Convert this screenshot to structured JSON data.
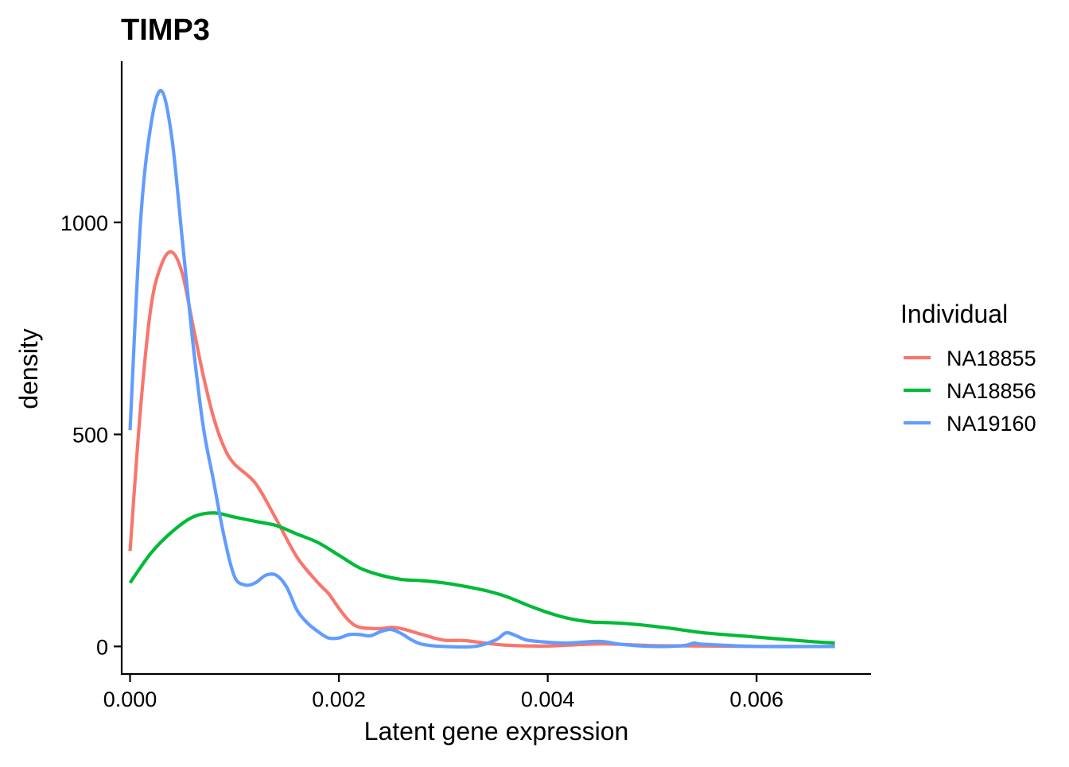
{
  "chart_data": {
    "type": "line",
    "title": "TIMP3",
    "xlabel": "Latent gene expression",
    "ylabel": "density",
    "xlim": [
      -8e-05,
      0.00708
    ],
    "ylim": [
      -65,
      1380
    ],
    "xticks": [
      0.0,
      0.002,
      0.004,
      0.006
    ],
    "xtick_labels": [
      "0.000",
      "0.002",
      "0.004",
      "0.006"
    ],
    "yticks": [
      0,
      500,
      1000
    ],
    "ytick_labels": [
      "0",
      "500",
      "1000"
    ],
    "grid": false,
    "legend": {
      "title": "Individual",
      "position": "right"
    },
    "series": [
      {
        "name": "NA18855",
        "color": "#F8766D",
        "points": [
          [
            0.0,
            225
          ],
          [
            0.0001,
            560
          ],
          [
            0.0002,
            800
          ],
          [
            0.0003,
            900
          ],
          [
            0.0004,
            930
          ],
          [
            0.0005,
            880
          ],
          [
            0.0006,
            760
          ],
          [
            0.0007,
            640
          ],
          [
            0.0008,
            540
          ],
          [
            0.0009,
            470
          ],
          [
            0.001,
            430
          ],
          [
            0.0012,
            385
          ],
          [
            0.0014,
            300
          ],
          [
            0.0016,
            210
          ],
          [
            0.0018,
            150
          ],
          [
            0.0019,
            125
          ],
          [
            0.002,
            90
          ],
          [
            0.0021,
            60
          ],
          [
            0.0022,
            45
          ],
          [
            0.0024,
            42
          ],
          [
            0.0025,
            45
          ],
          [
            0.0026,
            42
          ],
          [
            0.0028,
            28
          ],
          [
            0.003,
            15
          ],
          [
            0.0032,
            14
          ],
          [
            0.0034,
            8
          ],
          [
            0.0036,
            3
          ],
          [
            0.004,
            1
          ],
          [
            0.0045,
            6
          ],
          [
            0.005,
            2
          ],
          [
            0.0055,
            1
          ],
          [
            0.006,
            0
          ],
          [
            0.00675,
            0
          ]
        ]
      },
      {
        "name": "NA18856",
        "color": "#00BA38",
        "points": [
          [
            0.0,
            150
          ],
          [
            0.0002,
            220
          ],
          [
            0.0004,
            270
          ],
          [
            0.0006,
            305
          ],
          [
            0.0008,
            315
          ],
          [
            0.001,
            305
          ],
          [
            0.0012,
            295
          ],
          [
            0.0014,
            285
          ],
          [
            0.0016,
            265
          ],
          [
            0.0018,
            245
          ],
          [
            0.002,
            215
          ],
          [
            0.0022,
            185
          ],
          [
            0.0024,
            168
          ],
          [
            0.0026,
            158
          ],
          [
            0.0028,
            155
          ],
          [
            0.003,
            150
          ],
          [
            0.0032,
            142
          ],
          [
            0.0034,
            132
          ],
          [
            0.0036,
            118
          ],
          [
            0.0038,
            98
          ],
          [
            0.004,
            80
          ],
          [
            0.0042,
            66
          ],
          [
            0.0044,
            58
          ],
          [
            0.0046,
            56
          ],
          [
            0.0048,
            53
          ],
          [
            0.005,
            48
          ],
          [
            0.0052,
            42
          ],
          [
            0.0055,
            32
          ],
          [
            0.006,
            22
          ],
          [
            0.0065,
            12
          ],
          [
            0.00675,
            8
          ]
        ]
      },
      {
        "name": "NA19160",
        "color": "#619CFF",
        "points": [
          [
            0.0,
            510
          ],
          [
            0.0001,
            1000
          ],
          [
            0.0002,
            1230
          ],
          [
            0.0003,
            1310
          ],
          [
            0.0004,
            1200
          ],
          [
            0.0005,
            960
          ],
          [
            0.0006,
            720
          ],
          [
            0.0007,
            520
          ],
          [
            0.0008,
            390
          ],
          [
            0.0009,
            260
          ],
          [
            0.001,
            165
          ],
          [
            0.0011,
            145
          ],
          [
            0.0012,
            150
          ],
          [
            0.0013,
            168
          ],
          [
            0.0014,
            168
          ],
          [
            0.0015,
            140
          ],
          [
            0.0016,
            85
          ],
          [
            0.0017,
            55
          ],
          [
            0.0018,
            35
          ],
          [
            0.0019,
            20
          ],
          [
            0.002,
            20
          ],
          [
            0.0021,
            28
          ],
          [
            0.0022,
            28
          ],
          [
            0.0023,
            25
          ],
          [
            0.0024,
            35
          ],
          [
            0.0025,
            40
          ],
          [
            0.0026,
            30
          ],
          [
            0.0027,
            15
          ],
          [
            0.0028,
            5
          ],
          [
            0.003,
            0
          ],
          [
            0.0033,
            0
          ],
          [
            0.0035,
            15
          ],
          [
            0.0036,
            32
          ],
          [
            0.0037,
            25
          ],
          [
            0.0038,
            15
          ],
          [
            0.004,
            10
          ],
          [
            0.0042,
            8
          ],
          [
            0.0045,
            12
          ],
          [
            0.0047,
            5
          ],
          [
            0.005,
            0
          ],
          [
            0.0053,
            2
          ],
          [
            0.0054,
            8
          ],
          [
            0.0055,
            5
          ],
          [
            0.006,
            0
          ],
          [
            0.00675,
            0
          ]
        ]
      }
    ]
  }
}
